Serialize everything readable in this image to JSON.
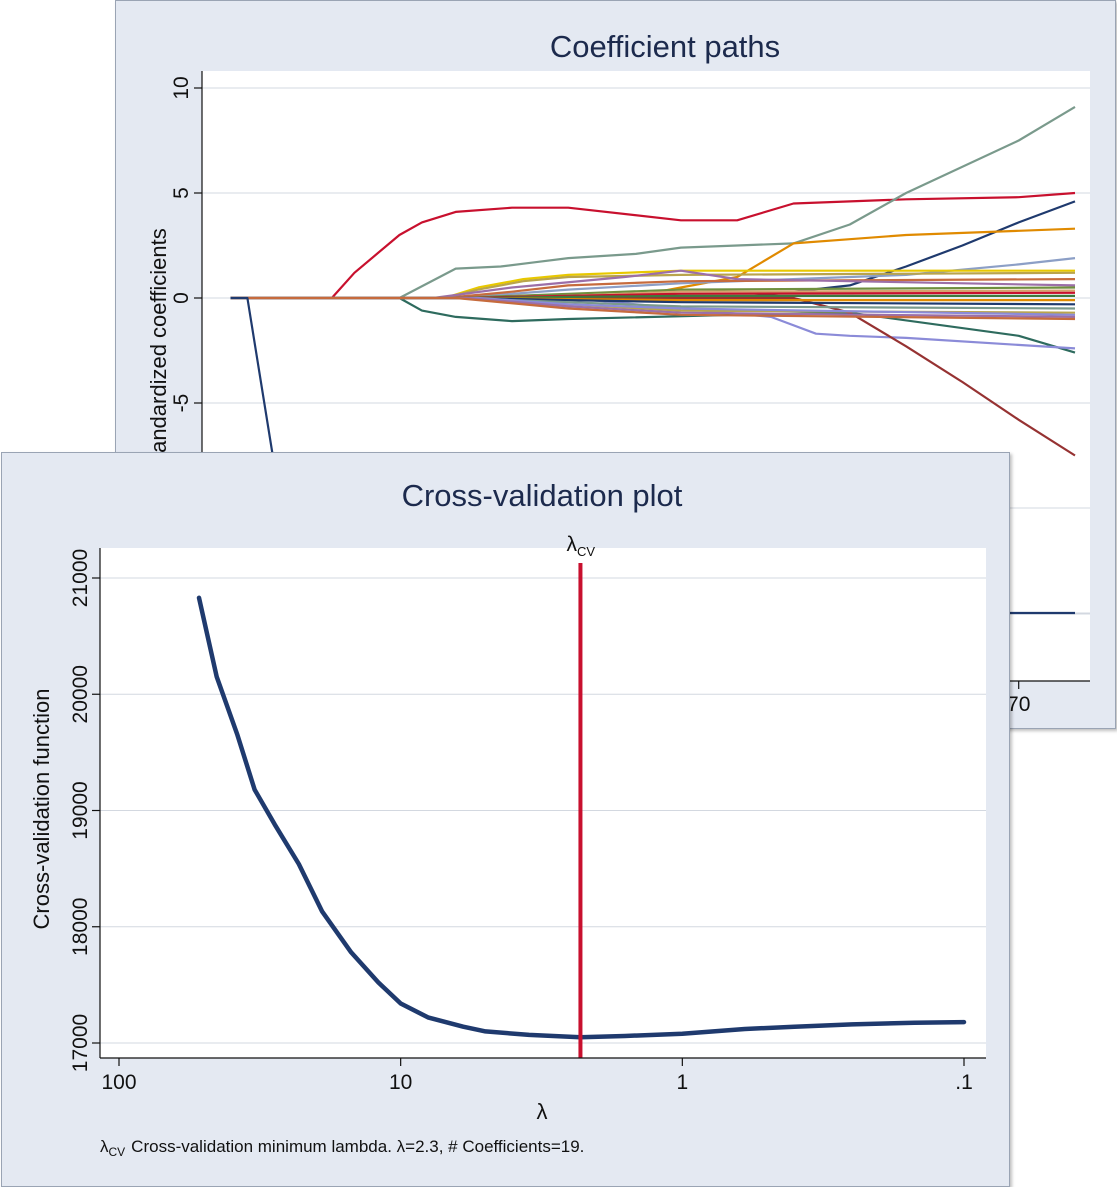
{
  "chart_data": [
    {
      "type": "line",
      "title": "Coefficient paths",
      "ylabel": "Standardized coefficients",
      "xlim": [
        0,
        75
      ],
      "ylim": [
        -15,
        10.5
      ],
      "yticks": [
        10,
        5,
        0,
        -5
      ],
      "ytick_labels": [
        "10",
        "5",
        "0",
        "-5"
      ],
      "xticks": [
        70
      ],
      "xtick_labels": [
        "70"
      ],
      "grid": true,
      "series": [
        {
          "color": "#c8102e",
          "x": [
            0,
            9,
            11,
            15,
            17,
            20,
            25,
            30,
            40,
            45,
            50,
            60,
            70,
            75
          ],
          "y": [
            0,
            0,
            1.2,
            3,
            3.6,
            4.1,
            4.3,
            4.3,
            3.7,
            3.7,
            4.5,
            4.7,
            4.8,
            5.0
          ]
        },
        {
          "color": "#7a9a8c",
          "x": [
            0,
            15,
            20,
            24,
            27,
            30,
            33,
            36,
            40,
            45,
            50,
            55,
            60,
            70,
            75
          ],
          "y": [
            0,
            0,
            1.4,
            1.5,
            1.7,
            1.9,
            2.0,
            2.1,
            2.4,
            2.5,
            2.6,
            3.5,
            5.0,
            7.5,
            9.1
          ]
        },
        {
          "color": "#1f3a6e",
          "x": [
            0,
            45,
            55,
            60,
            65,
            70,
            75
          ],
          "y": [
            0,
            0,
            0.6,
            1.5,
            2.5,
            3.6,
            4.6
          ]
        },
        {
          "color": "#e08a00",
          "x": [
            0,
            35,
            40,
            45,
            50,
            55,
            60,
            70,
            75
          ],
          "y": [
            0,
            0,
            0.5,
            1.0,
            2.6,
            2.8,
            3.0,
            3.2,
            3.3
          ]
        },
        {
          "color": "#2e6b5e",
          "x": [
            0,
            15,
            17,
            20,
            25,
            30,
            45,
            55,
            70,
            75
          ],
          "y": [
            0,
            0,
            -0.6,
            -0.9,
            -1.1,
            -1.0,
            -0.8,
            -0.7,
            -1.8,
            -2.6
          ]
        },
        {
          "color": "#8b8bd8",
          "x": [
            0,
            30,
            40,
            48,
            52,
            55,
            60,
            75
          ],
          "y": [
            0,
            0,
            -0.5,
            -0.9,
            -1.7,
            -1.8,
            -1.9,
            -2.4
          ]
        },
        {
          "color": "#963232",
          "x": [
            0,
            50,
            55,
            60,
            65,
            70,
            75
          ],
          "y": [
            0,
            0,
            -0.7,
            -2.3,
            -4.0,
            -5.8,
            -7.5
          ]
        },
        {
          "color": "#8c9fc6",
          "x": [
            0,
            20,
            30,
            40,
            50,
            60,
            70,
            75
          ],
          "y": [
            0,
            0,
            0.4,
            0.7,
            0.9,
            1.1,
            1.6,
            1.9
          ]
        },
        {
          "color": "#e8c800",
          "x": [
            0,
            19,
            22,
            26,
            30,
            35,
            40,
            75
          ],
          "y": [
            0,
            0,
            0.5,
            0.9,
            1.1,
            1.2,
            1.3,
            1.3
          ]
        },
        {
          "color": "#b9a44c",
          "x": [
            0,
            19,
            22,
            26,
            30,
            40,
            75
          ],
          "y": [
            0,
            0,
            0.4,
            0.8,
            1.0,
            1.1,
            1.2
          ]
        },
        {
          "color": "#c66b3d",
          "x": [
            0,
            19,
            25,
            30,
            40,
            75
          ],
          "y": [
            0,
            0,
            0.3,
            0.6,
            0.8,
            0.9
          ]
        },
        {
          "color": "#9c6fa8",
          "x": [
            0,
            18,
            25,
            35,
            40,
            45,
            75
          ],
          "y": [
            0,
            0,
            0.5,
            1.0,
            1.3,
            0.9,
            0.6
          ]
        },
        {
          "color": "#6f8f3e",
          "x": [
            0,
            20,
            30,
            40,
            75
          ],
          "y": [
            0,
            0,
            0.2,
            0.4,
            0.5
          ]
        },
        {
          "color": "#d6a36e",
          "x": [
            0,
            21,
            30,
            40,
            75
          ],
          "y": [
            0,
            0,
            0.1,
            0.3,
            0.35
          ]
        },
        {
          "color": "#c8102e",
          "x": [
            0,
            20,
            30,
            40,
            75
          ],
          "y": [
            0,
            0,
            0.1,
            0.2,
            0.25
          ]
        },
        {
          "color": "#3c7a3c",
          "x": [
            0,
            21,
            30,
            40,
            75
          ],
          "y": [
            0,
            0,
            0.05,
            0.1,
            0.1
          ]
        },
        {
          "color": "#e08a00",
          "x": [
            0,
            22,
            30,
            40,
            75
          ],
          "y": [
            0,
            0,
            -0.05,
            -0.1,
            -0.1
          ]
        },
        {
          "color": "#1f3a6e",
          "x": [
            0,
            21,
            30,
            40,
            75
          ],
          "y": [
            0,
            0,
            -0.1,
            -0.2,
            -0.3
          ]
        },
        {
          "color": "#7a9a8c",
          "x": [
            0,
            20,
            30,
            40,
            75
          ],
          "y": [
            0,
            0,
            -0.2,
            -0.4,
            -0.5
          ]
        },
        {
          "color": "#b9a44c",
          "x": [
            0,
            20,
            30,
            40,
            75
          ],
          "y": [
            0,
            0,
            -0.3,
            -0.6,
            -0.7
          ]
        },
        {
          "color": "#8b8bd8",
          "x": [
            0,
            22,
            30,
            40,
            75
          ],
          "y": [
            0,
            0,
            -0.3,
            -0.5,
            -0.8
          ]
        },
        {
          "color": "#9c6fa8",
          "x": [
            0,
            21,
            30,
            40,
            75
          ],
          "y": [
            0,
            0,
            -0.4,
            -0.7,
            -0.9
          ]
        },
        {
          "color": "#c66b3d",
          "x": [
            0,
            20,
            30,
            40,
            75
          ],
          "y": [
            0,
            0,
            -0.5,
            -0.8,
            -1.0
          ]
        },
        {
          "color": "#1f3a6e",
          "x": [
            0,
            1.5,
            6,
            75
          ],
          "y": [
            0,
            0,
            -15,
            -15
          ]
        }
      ]
    },
    {
      "type": "line",
      "title": "Cross-validation plot",
      "xlabel": "λ",
      "ylabel": "Cross-validation function",
      "xscale": "log",
      "xreversed": true,
      "xlim": [
        100,
        0.095
      ],
      "ylim": [
        16990,
        21150
      ],
      "xticks": [
        100,
        10,
        1,
        0.1
      ],
      "xtick_labels": [
        "100",
        "10",
        "1",
        ".1"
      ],
      "yticks": [
        17000,
        18000,
        19000,
        20000,
        21000
      ],
      "ytick_labels": [
        "17000",
        "18000",
        "19000",
        "20000",
        "21000"
      ],
      "grid": true,
      "series": [
        {
          "color": "#1f3a6e",
          "x": [
            52,
            45,
            38,
            33,
            28,
            23,
            19,
            15,
            12,
            10,
            8,
            6,
            5,
            3.5,
            2.3,
            1.6,
            1,
            0.6,
            0.4,
            0.25,
            0.15,
            0.1
          ],
          "y": [
            20830,
            20150,
            19650,
            19180,
            18880,
            18540,
            18130,
            17780,
            17520,
            17340,
            17220,
            17140,
            17100,
            17070,
            17050,
            17060,
            17080,
            17120,
            17140,
            17160,
            17175,
            17180
          ]
        }
      ],
      "reference_line": {
        "x": 2.3,
        "label": "λ",
        "label_sub": "CV",
        "color": "#c8102e"
      },
      "note": {
        "symbol": "λ",
        "symbol_sub": "CV",
        "text": "Cross-validation minimum lambda.  λ=2.3, # Coefficients=19."
      }
    }
  ]
}
